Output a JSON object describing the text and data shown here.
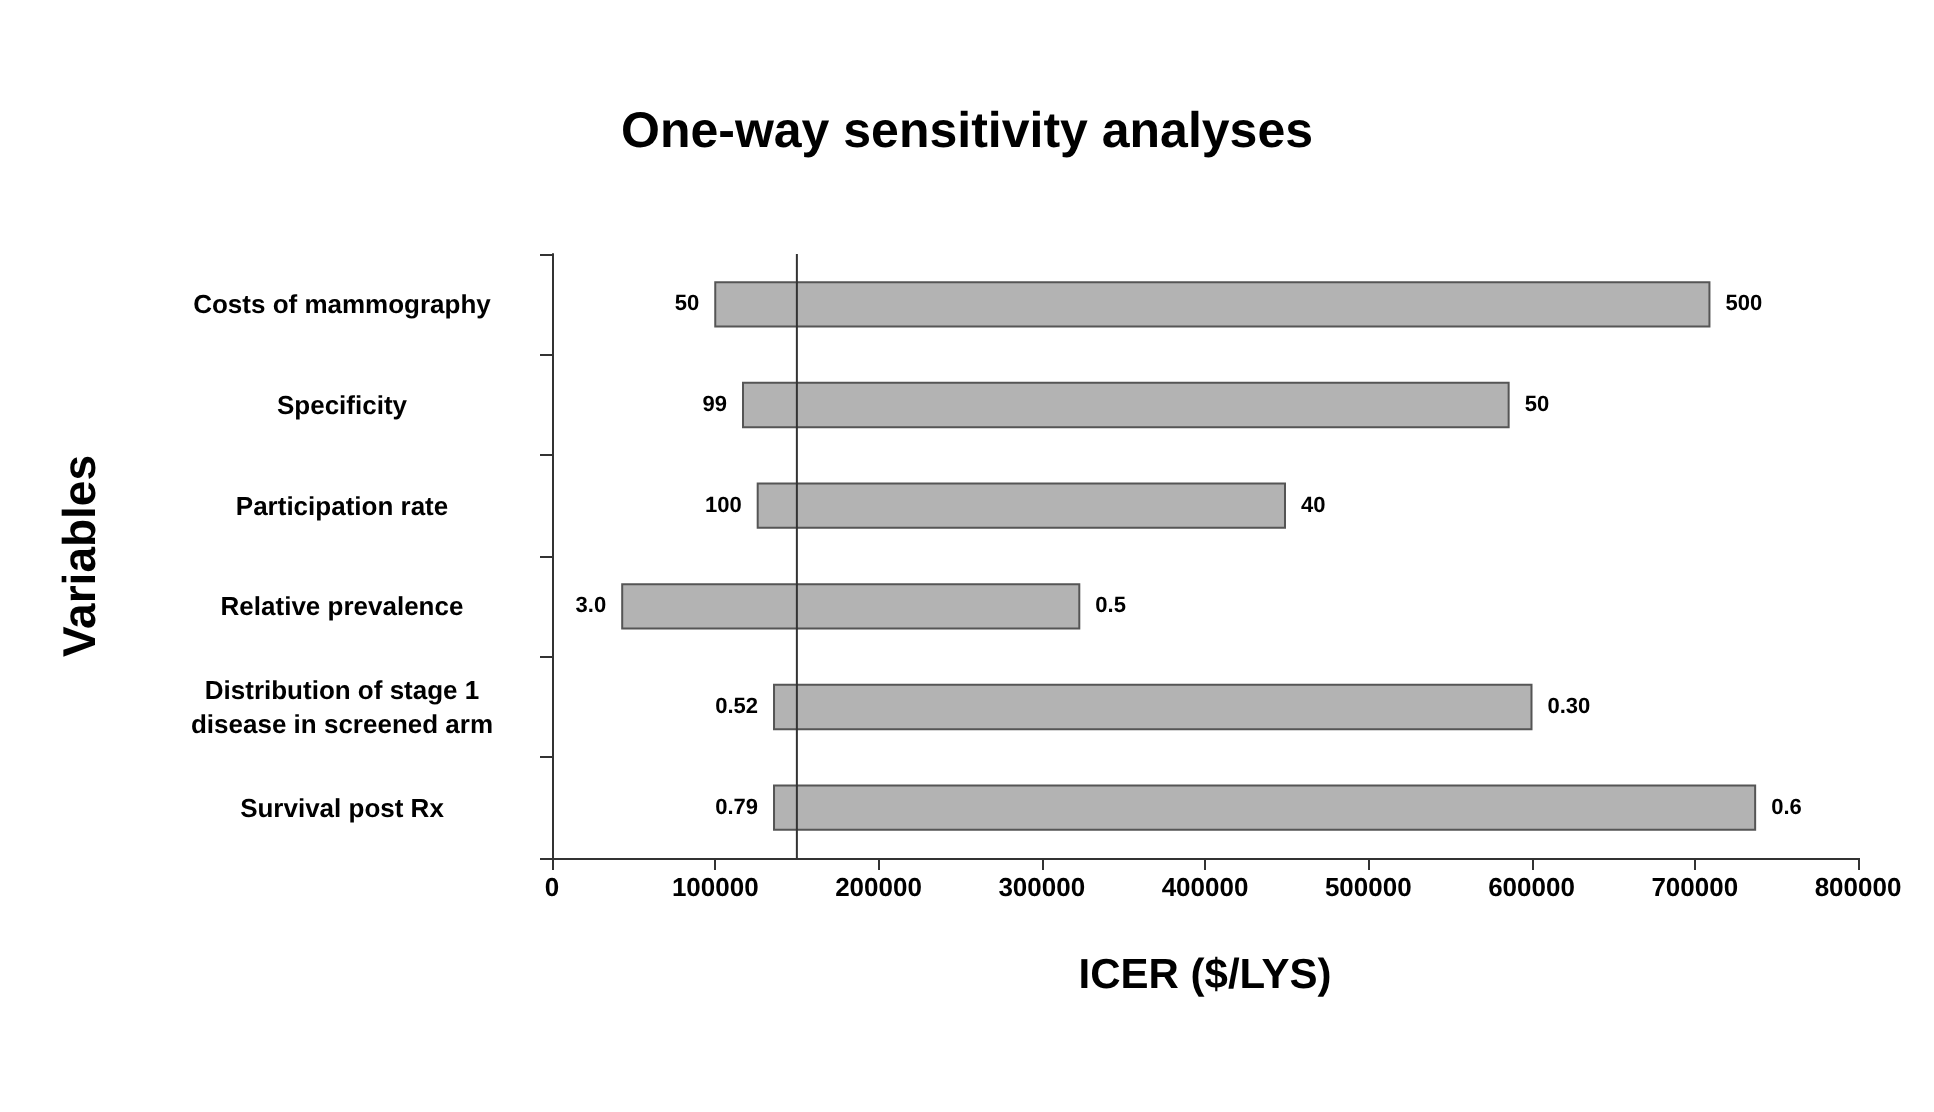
{
  "chart_data": {
    "type": "bar",
    "orientation": "horizontal",
    "title": "One-way sensitivity analyses",
    "xlabel": "ICER ($/LYS)",
    "ylabel": "Variables",
    "categories": [
      "Costs of mammography",
      "Specificity",
      "Participation rate",
      "Relative prevalence",
      "Distribution of stage 1\ndisease in screened arm",
      "Survival post Rx"
    ],
    "base": [
      100000,
      117000,
      126000,
      43000,
      136000,
      136000
    ],
    "values": [
      609000,
      469000,
      323000,
      280000,
      464000,
      601000
    ],
    "color": "#b3b3b3",
    "xlim": [
      0,
      800000
    ],
    "xticks": [
      0,
      100000,
      200000,
      300000,
      400000,
      500000,
      600000,
      700000,
      800000
    ],
    "grid": false,
    "ref_lines": [
      {
        "axis": "x",
        "value": 150000,
        "color": "#333333"
      }
    ],
    "annotations": [
      {
        "text": "50",
        "x": 100000,
        "y": "Costs of mammography"
      },
      {
        "text": "500",
        "x": 709000,
        "y": "Costs of mammography"
      },
      {
        "text": "99",
        "x": 117000,
        "y": "Specificity"
      },
      {
        "text": "50",
        "x": 586000,
        "y": "Specificity"
      },
      {
        "text": "100",
        "x": 126000,
        "y": "Participation rate"
      },
      {
        "text": "40",
        "x": 449000,
        "y": "Participation rate"
      },
      {
        "text": "3.0",
        "x": 43000,
        "y": "Relative prevalence"
      },
      {
        "text": "0.5",
        "x": 323000,
        "y": "Relative prevalence"
      },
      {
        "text": "0.52",
        "x": 136000,
        "y": "Distribution of stage 1\ndisease in screened arm"
      },
      {
        "text": "0.30",
        "x": 600000,
        "y": "Distribution of stage 1\ndisease in screened arm"
      },
      {
        "text": "0.79",
        "x": 136000,
        "y": "Survival post Rx"
      },
      {
        "text": "0.6",
        "x": 737000,
        "y": "Survival post Rx"
      }
    ]
  }
}
